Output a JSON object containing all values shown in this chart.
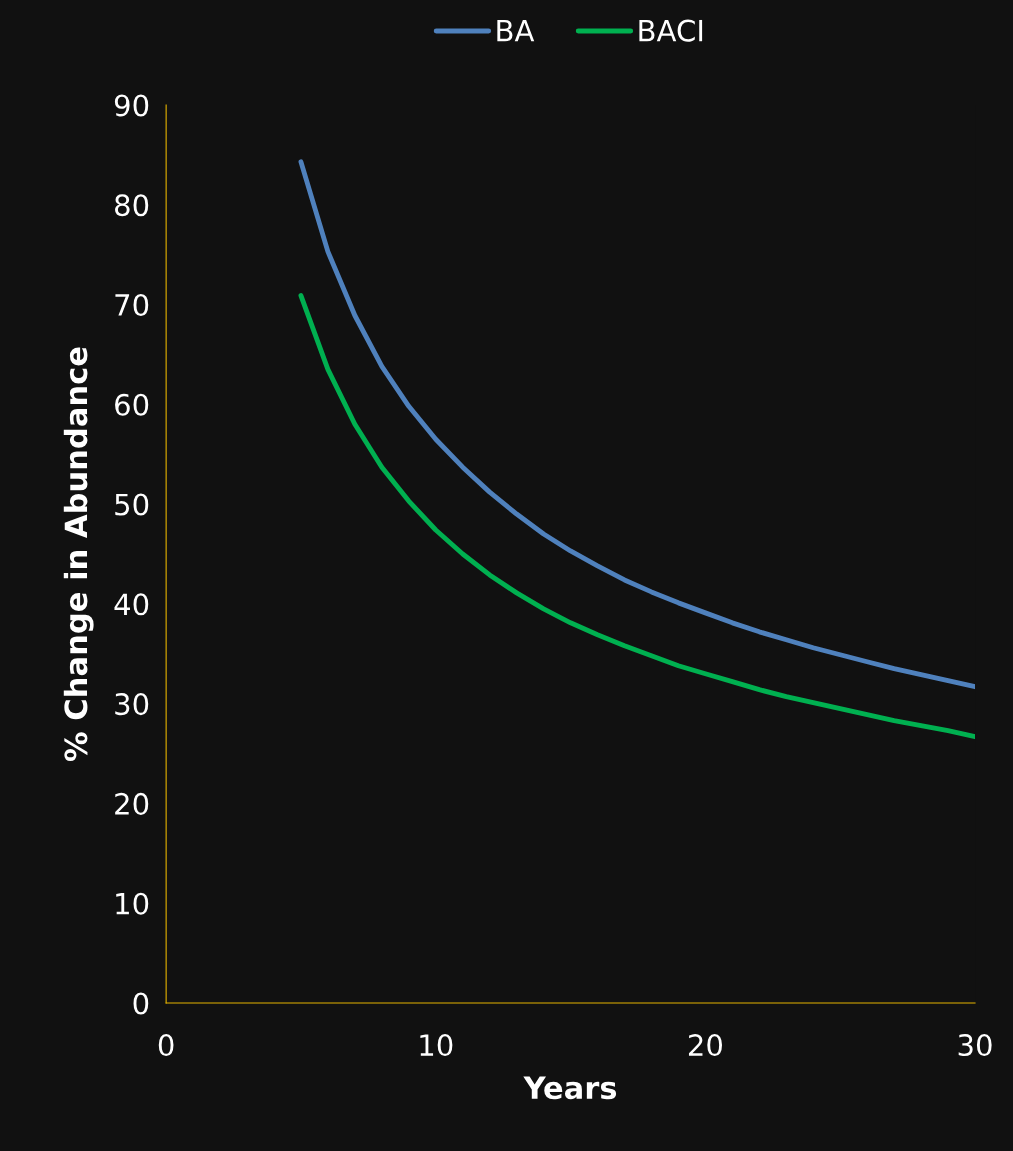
{
  "chart_data": {
    "type": "line",
    "xlabel": "Years",
    "ylabel": "% Change in Abundance",
    "x": [
      5,
      6,
      7,
      8,
      9,
      10,
      11,
      12,
      13,
      14,
      15,
      16,
      17,
      18,
      19,
      20,
      21,
      22,
      23,
      24,
      25,
      26,
      27,
      28,
      29,
      30
    ],
    "series": [
      {
        "name": "BA",
        "color": "#4f81bd",
        "values": [
          84.3,
          75.3,
          68.9,
          63.8,
          59.8,
          56.5,
          53.7,
          51.2,
          49.0,
          47.0,
          45.3,
          43.8,
          42.4,
          41.2,
          40.1,
          39.1,
          38.1,
          37.2,
          36.4,
          35.6,
          34.9,
          34.2,
          33.5,
          32.9,
          32.3,
          31.7
        ]
      },
      {
        "name": "BACI",
        "color": "#00b050",
        "values": [
          70.9,
          63.5,
          58.0,
          53.7,
          50.3,
          47.4,
          45.0,
          42.9,
          41.1,
          39.5,
          38.1,
          36.9,
          35.8,
          34.8,
          33.8,
          33.0,
          32.2,
          31.4,
          30.7,
          30.1,
          29.5,
          28.9,
          28.3,
          27.8,
          27.3,
          26.7
        ]
      }
    ],
    "xlim": [
      0,
      30
    ],
    "xticks": [
      0,
      10,
      20,
      30
    ],
    "ylim": [
      0,
      90
    ],
    "yticks": [
      0,
      10,
      20,
      30,
      40,
      50,
      60,
      70,
      80,
      90
    ],
    "grid": false,
    "legend": "top",
    "marker": "none",
    "line_style": "solid"
  }
}
